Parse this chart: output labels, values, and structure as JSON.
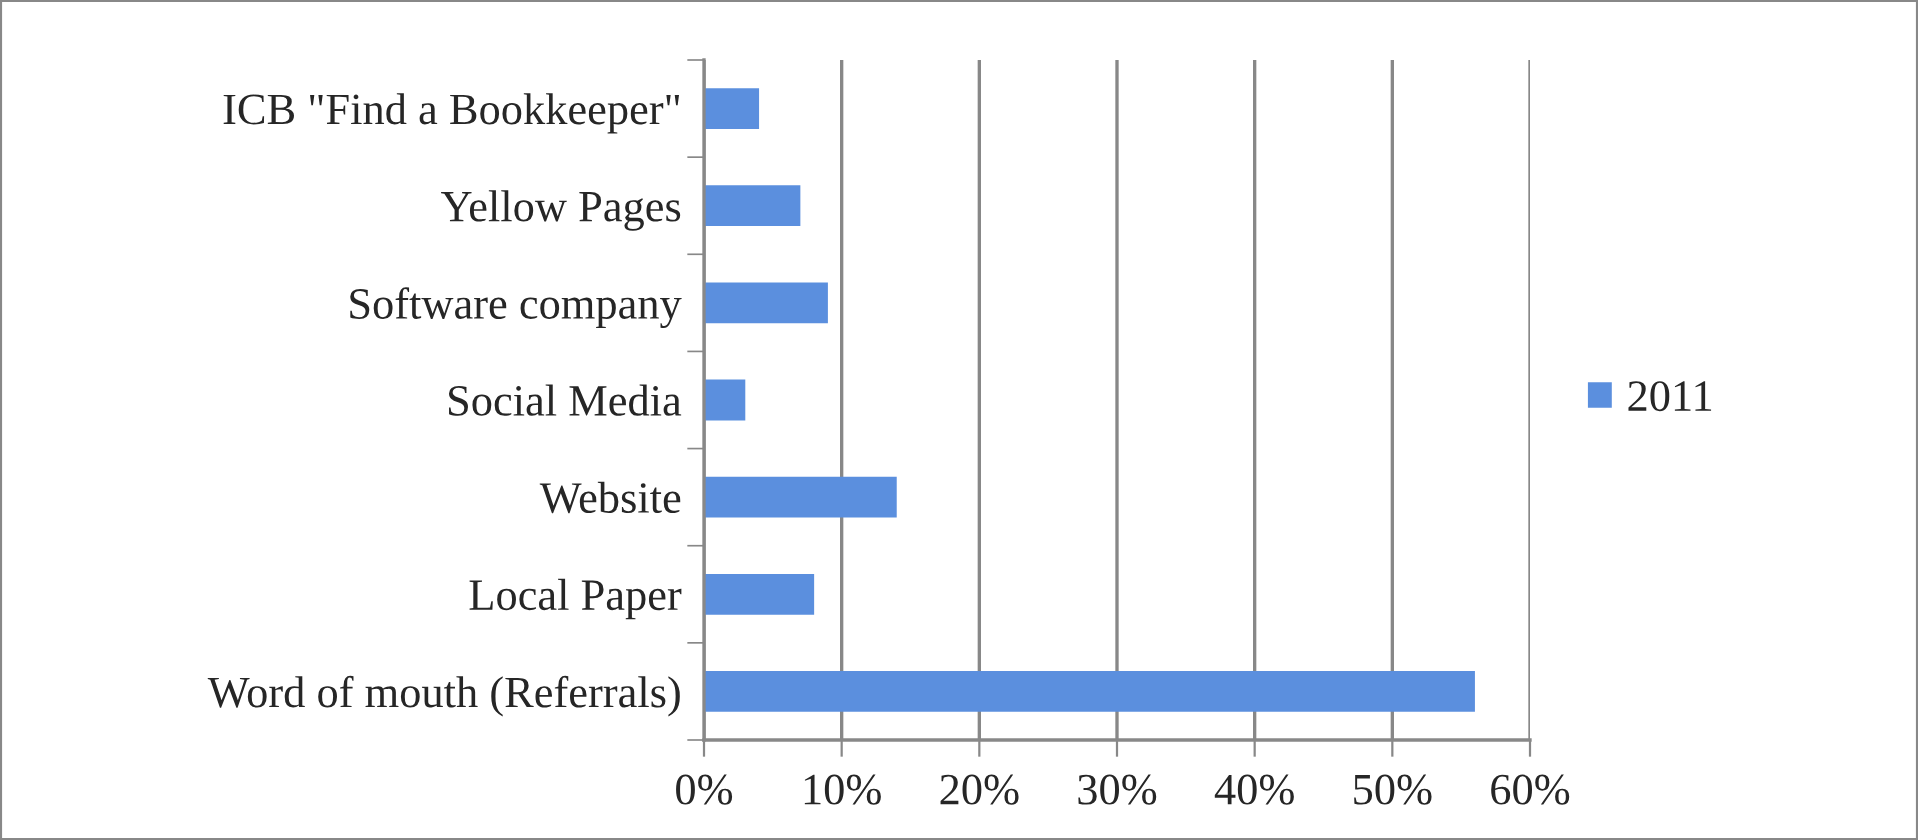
{
  "chart_data": {
    "type": "bar",
    "orientation": "horizontal",
    "categories": [
      "ICB \"Find a Bookkeeper\"",
      "Yellow Pages",
      "Software company",
      "Social Media",
      "Website",
      "Local Paper",
      "Word of mouth (Referrals)"
    ],
    "series": [
      {
        "name": "2011",
        "color": "#5b8fde",
        "values": [
          4,
          7,
          9,
          3,
          14,
          8,
          56
        ]
      }
    ],
    "xlim": [
      0,
      60
    ],
    "xticks": [
      {
        "value": 0,
        "label": "0%"
      },
      {
        "value": 10,
        "label": "10%"
      },
      {
        "value": 20,
        "label": "20%"
      },
      {
        "value": 30,
        "label": "30%"
      },
      {
        "value": 40,
        "label": "40%"
      },
      {
        "value": 50,
        "label": "50%"
      },
      {
        "value": 60,
        "label": "60%"
      }
    ],
    "grid": "x",
    "legend": "right"
  }
}
